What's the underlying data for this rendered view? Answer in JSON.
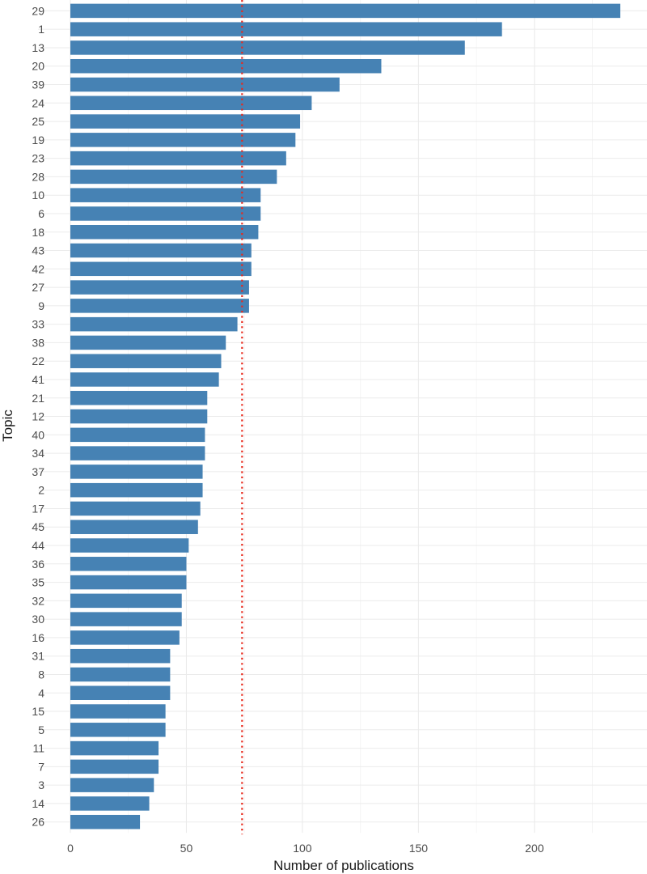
{
  "chart_data": {
    "type": "bar",
    "orientation": "horizontal",
    "title": "",
    "xlabel": "Number of publications",
    "ylabel": "Topic",
    "categories": [
      "29",
      "1",
      "13",
      "20",
      "39",
      "24",
      "25",
      "19",
      "23",
      "28",
      "10",
      "6",
      "18",
      "43",
      "42",
      "27",
      "9",
      "33",
      "38",
      "22",
      "41",
      "21",
      "12",
      "40",
      "34",
      "37",
      "2",
      "17",
      "45",
      "44",
      "36",
      "35",
      "32",
      "30",
      "16",
      "31",
      "8",
      "4",
      "15",
      "5",
      "11",
      "7",
      "3",
      "14",
      "26"
    ],
    "values": [
      237,
      186,
      170,
      134,
      116,
      104,
      99,
      97,
      93,
      89,
      82,
      82,
      81,
      78,
      78,
      77,
      77,
      72,
      67,
      65,
      64,
      59,
      59,
      58,
      58,
      57,
      57,
      56,
      55,
      51,
      50,
      50,
      48,
      48,
      47,
      43,
      43,
      43,
      41,
      41,
      38,
      38,
      36,
      34,
      30
    ],
    "xlim": [
      0,
      237
    ],
    "xticks": [
      0,
      50,
      100,
      150,
      200
    ],
    "reference_line": {
      "value": 74,
      "style": "dotted",
      "color": "#e8291c"
    },
    "bar_color": "#4682b4",
    "grid": true,
    "legend": "none"
  }
}
